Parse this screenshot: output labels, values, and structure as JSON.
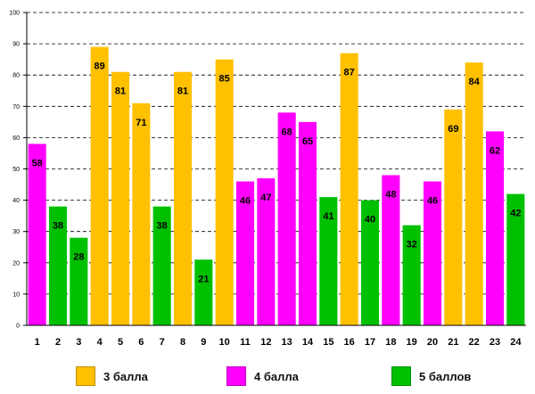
{
  "chart_data": {
    "type": "bar",
    "title": "",
    "xlabel": "",
    "ylabel": "",
    "ylim": [
      0,
      100
    ],
    "yticks": [
      0,
      10,
      20,
      30,
      40,
      50,
      60,
      70,
      80,
      90,
      100
    ],
    "grid": true,
    "categories": [
      "1",
      "2",
      "3",
      "4",
      "5",
      "6",
      "7",
      "8",
      "9",
      "10",
      "11",
      "12",
      "13",
      "14",
      "15",
      "16",
      "17",
      "18",
      "19",
      "20",
      "21",
      "22",
      "23",
      "24"
    ],
    "values": [
      58,
      38,
      28,
      89,
      81,
      71,
      38,
      81,
      21,
      85,
      46,
      47,
      68,
      65,
      41,
      87,
      40,
      48,
      32,
      46,
      69,
      84,
      62,
      42
    ],
    "groups": [
      "4",
      "5",
      "5",
      "3",
      "3",
      "3",
      "5",
      "3",
      "5",
      "3",
      "4",
      "4",
      "4",
      "4",
      "5",
      "3",
      "5",
      "4",
      "5",
      "4",
      "3",
      "3",
      "4",
      "5"
    ],
    "series": [
      {
        "key": "3",
        "name": "3 балла",
        "color": "#FFC000"
      },
      {
        "key": "4",
        "name": "4 балла",
        "color": "#FF00FF"
      },
      {
        "key": "5",
        "name": "5 баллов",
        "color": "#00C000"
      }
    ],
    "legend_position": "bottom"
  }
}
